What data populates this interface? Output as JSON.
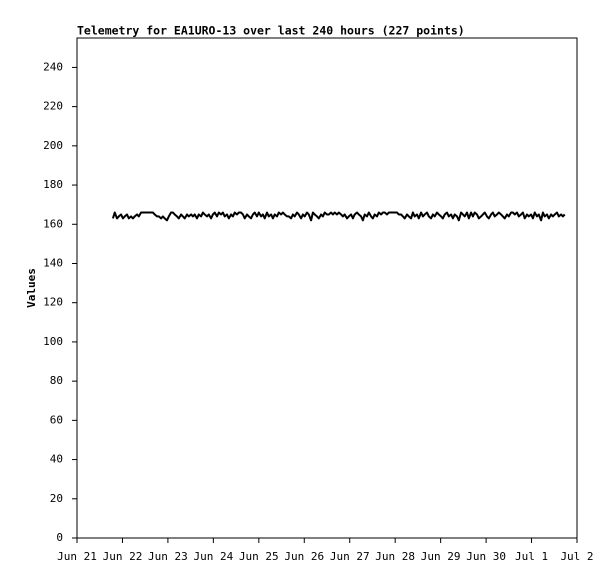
{
  "chart_data": {
    "type": "line",
    "title": "Telemetry for EA1URO-13 over last 240 hours (227 points)",
    "ylabel": "Values",
    "xlim": [
      0,
      11
    ],
    "xticks": [
      {
        "value": 0,
        "label": "Jun 21"
      },
      {
        "value": 1,
        "label": "Jun 22"
      },
      {
        "value": 2,
        "label": "Jun 23"
      },
      {
        "value": 3,
        "label": "Jun 24"
      },
      {
        "value": 4,
        "label": "Jun 25"
      },
      {
        "value": 5,
        "label": "Jun 26"
      },
      {
        "value": 6,
        "label": "Jun 27"
      },
      {
        "value": 7,
        "label": "Jun 28"
      },
      {
        "value": 8,
        "label": "Jun 29"
      },
      {
        "value": 9,
        "label": "Jun 30"
      },
      {
        "value": 10,
        "label": "Jul 1"
      },
      {
        "value": 11,
        "label": "Jul 2"
      }
    ],
    "ylim": [
      0,
      255
    ],
    "yticks": [
      0,
      20,
      40,
      60,
      80,
      100,
      120,
      140,
      160,
      180,
      200,
      220,
      240
    ],
    "color": "#000000",
    "x": [
      0.79,
      0.83,
      0.88,
      0.92,
      0.97,
      1.01,
      1.05,
      1.1,
      1.14,
      1.19,
      1.23,
      1.27,
      1.32,
      1.36,
      1.41,
      1.45,
      1.49,
      1.54,
      1.58,
      1.63,
      1.67,
      1.71,
      1.76,
      1.8,
      1.85,
      1.89,
      1.93,
      1.98,
      2.02,
      2.07,
      2.11,
      2.15,
      2.2,
      2.24,
      2.29,
      2.33,
      2.37,
      2.42,
      2.46,
      2.51,
      2.55,
      2.59,
      2.64,
      2.68,
      2.73,
      2.77,
      2.81,
      2.86,
      2.9,
      2.95,
      2.99,
      3.03,
      3.08,
      3.12,
      3.17,
      3.21,
      3.25,
      3.3,
      3.34,
      3.39,
      3.43,
      3.47,
      3.52,
      3.56,
      3.61,
      3.65,
      3.69,
      3.74,
      3.78,
      3.83,
      3.87,
      3.91,
      3.96,
      4,
      4.05,
      4.09,
      4.13,
      4.18,
      4.22,
      4.27,
      4.31,
      4.35,
      4.4,
      4.44,
      4.49,
      4.53,
      4.57,
      4.62,
      4.66,
      4.71,
      4.75,
      4.79,
      4.84,
      4.88,
      4.93,
      4.97,
      5.01,
      5.06,
      5.1,
      5.15,
      5.19,
      5.23,
      5.28,
      5.32,
      5.37,
      5.41,
      5.45,
      5.5,
      5.54,
      5.59,
      5.63,
      5.67,
      5.72,
      5.76,
      5.81,
      5.85,
      5.89,
      5.94,
      5.98,
      6.03,
      6.07,
      6.11,
      6.16,
      6.2,
      6.25,
      6.29,
      6.33,
      6.38,
      6.42,
      6.47,
      6.51,
      6.55,
      6.6,
      6.64,
      6.69,
      6.73,
      6.77,
      6.82,
      6.86,
      6.91,
      6.95,
      6.99,
      7.04,
      7.08,
      7.13,
      7.17,
      7.21,
      7.26,
      7.3,
      7.35,
      7.39,
      7.43,
      7.48,
      7.52,
      7.57,
      7.61,
      7.65,
      7.7,
      7.74,
      7.79,
      7.83,
      7.87,
      7.92,
      7.96,
      8.01,
      8.05,
      8.09,
      8.14,
      8.18,
      8.23,
      8.27,
      8.31,
      8.36,
      8.4,
      8.45,
      8.49,
      8.53,
      8.58,
      8.62,
      8.67,
      8.71,
      8.75,
      8.8,
      8.84,
      8.89,
      8.93,
      8.97,
      9.02,
      9.06,
      9.11,
      9.15,
      9.19,
      9.24,
      9.28,
      9.33,
      9.37,
      9.41,
      9.46,
      9.5,
      9.55,
      9.59,
      9.63,
      9.68,
      9.72,
      9.77,
      9.81,
      9.85,
      9.9,
      9.94,
      9.99,
      10.03,
      10.07,
      10.12,
      10.16,
      10.21,
      10.25,
      10.29,
      10.34,
      10.38,
      10.43,
      10.47,
      10.51,
      10.56,
      10.6,
      10.65,
      10.69,
      10.73
    ],
    "values": [
      163,
      166,
      163,
      164,
      165,
      163,
      164,
      165,
      163,
      164,
      163,
      164,
      165,
      164,
      166,
      166,
      166,
      166,
      166,
      166,
      166,
      165,
      164,
      164,
      163,
      164,
      163,
      162,
      164,
      166,
      166,
      165,
      164,
      163,
      165,
      164,
      163,
      165,
      164,
      165,
      164,
      165,
      163,
      165,
      164,
      166,
      165,
      164,
      165,
      163,
      165,
      166,
      164,
      166,
      165,
      166,
      164,
      165,
      163,
      165,
      164,
      166,
      165,
      166,
      166,
      165,
      163,
      165,
      164,
      163,
      165,
      166,
      164,
      166,
      164,
      165,
      163,
      166,
      164,
      165,
      163,
      165,
      164,
      166,
      165,
      166,
      165,
      164,
      164,
      163,
      165,
      164,
      166,
      165,
      163,
      165,
      164,
      166,
      165,
      162,
      166,
      165,
      164,
      163,
      165,
      164,
      166,
      165,
      165,
      166,
      165,
      166,
      165,
      166,
      165,
      164,
      165,
      163,
      164,
      165,
      163,
      165,
      166,
      165,
      164,
      162,
      165,
      164,
      166,
      164,
      163,
      165,
      164,
      166,
      165,
      166,
      166,
      165,
      166,
      166,
      166,
      166,
      166,
      165,
      165,
      164,
      163,
      165,
      164,
      163,
      166,
      164,
      165,
      163,
      166,
      164,
      165,
      166,
      164,
      163,
      165,
      164,
      166,
      165,
      164,
      163,
      165,
      166,
      164,
      165,
      163,
      165,
      164,
      162,
      166,
      165,
      164,
      166,
      163,
      166,
      164,
      166,
      165,
      163,
      164,
      165,
      166,
      164,
      163,
      165,
      166,
      164,
      165,
      166,
      165,
      164,
      163,
      165,
      164,
      166,
      166,
      165,
      166,
      164,
      165,
      166,
      163,
      165,
      164,
      165,
      163,
      166,
      164,
      165,
      162,
      166,
      164,
      165,
      163,
      165,
      164,
      165,
      166,
      164,
      165,
      164,
      165
    ]
  }
}
